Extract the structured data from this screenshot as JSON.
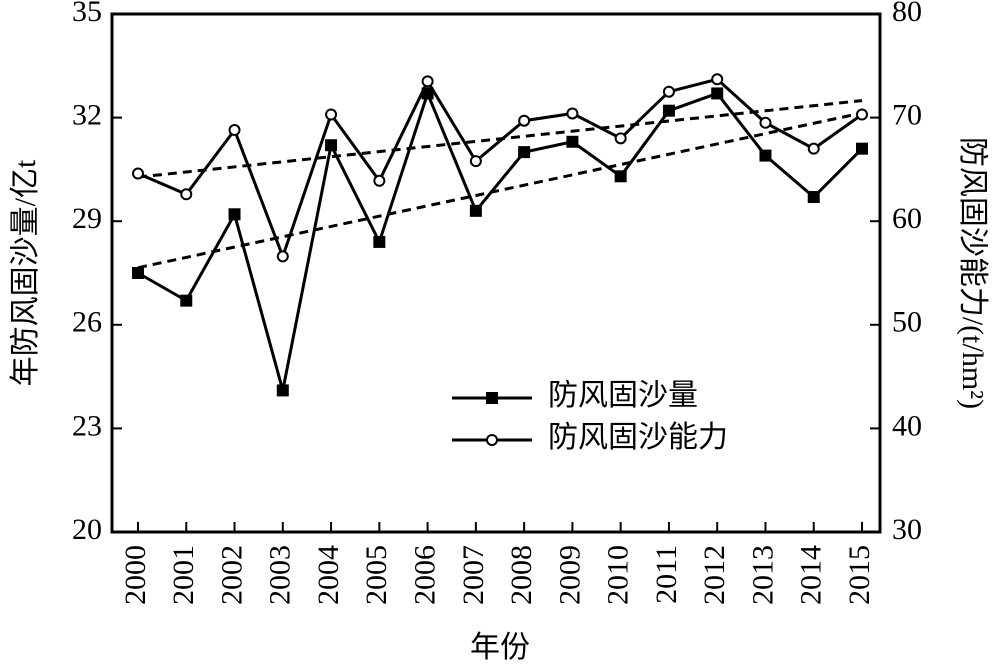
{
  "chart_data": {
    "type": "line",
    "x_label": "年份",
    "y_label": "年防风固沙量/亿t",
    "y2_label": "防风固沙能力/(t/hm²)",
    "categories": [
      "2000",
      "2001",
      "2002",
      "2003",
      "2004",
      "2005",
      "2006",
      "2007",
      "2008",
      "2009",
      "2010",
      "2011",
      "2012",
      "2013",
      "2014",
      "2015"
    ],
    "series": [
      {
        "name": "防风固沙量",
        "color": "#000000",
        "marker": "square",
        "values": [
          27.5,
          26.7,
          29.2,
          24.1,
          31.2,
          28.4,
          32.7,
          29.3,
          31.0,
          31.3,
          30.3,
          32.2,
          32.7,
          30.9,
          29.7,
          31.1
        ]
      },
      {
        "name": "防风固沙能力",
        "color": "#000000",
        "marker": "circle",
        "axis": "y2",
        "values": [
          64.6,
          62.6,
          68.8,
          56.6,
          70.3,
          63.9,
          73.5,
          65.8,
          69.7,
          70.4,
          68.0,
          72.5,
          73.7,
          69.5,
          67.0,
          70.3
        ]
      }
    ],
    "trendline": true,
    "ylim": [
      20,
      35
    ],
    "yticks": [
      20,
      23,
      26,
      29,
      32,
      35
    ],
    "y2lim": [
      30,
      80
    ],
    "y2ticks": [
      30,
      40,
      50,
      60,
      70,
      80
    ]
  }
}
